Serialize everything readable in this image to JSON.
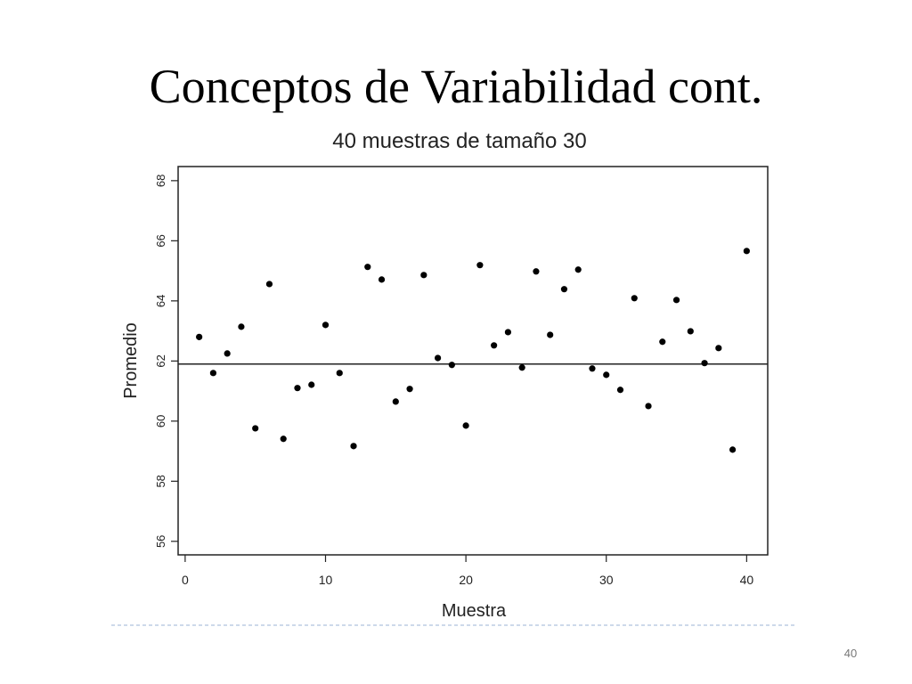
{
  "slide": {
    "title": "Conceptos de Variabilidad cont.",
    "page_number": "40"
  },
  "chart_data": {
    "type": "scatter",
    "title": "40 muestras de tamaño 30",
    "x_label": "Muestra",
    "y_label": "Promedio",
    "x": [
      1,
      2,
      3,
      4,
      5,
      6,
      7,
      8,
      9,
      10,
      11,
      12,
      13,
      14,
      15,
      16,
      17,
      18,
      19,
      20,
      21,
      22,
      23,
      24,
      25,
      26,
      27,
      28,
      29,
      30,
      31,
      32,
      33,
      34,
      35,
      36,
      37,
      38,
      39,
      40
    ],
    "y": [
      62.8,
      61.6,
      62.25,
      63.14,
      59.76,
      64.56,
      59.41,
      61.1,
      61.21,
      63.2,
      61.6,
      59.17,
      65.13,
      64.71,
      60.65,
      61.07,
      64.86,
      62.1,
      61.87,
      59.85,
      65.19,
      62.52,
      62.96,
      61.78,
      64.98,
      62.87,
      64.39,
      65.04,
      61.75,
      61.54,
      61.04,
      64.09,
      60.5,
      62.64,
      64.03,
      62.99,
      61.93,
      62.43,
      59.05,
      65.66
    ],
    "color": "#000000",
    "hline": 61.9,
    "xlim": [
      -0.5,
      41.5
    ],
    "xticks": [
      0,
      10,
      20,
      30,
      40
    ],
    "ylim": [
      55.55,
      68.47
    ],
    "yticks": [
      56,
      58,
      60,
      62,
      64,
      66,
      68
    ]
  }
}
